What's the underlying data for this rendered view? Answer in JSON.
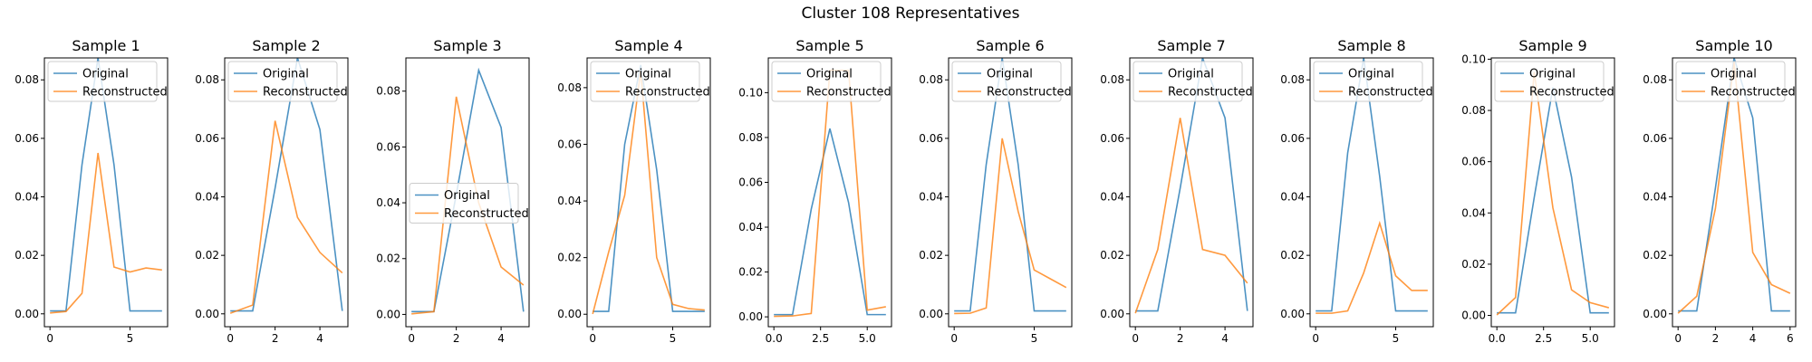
{
  "figure": {
    "suptitle": "Cluster 108 Representatives"
  },
  "colors": {
    "original": "#1f77b4",
    "reconstructed": "#ff7f0e",
    "axes": "#000000",
    "legend_border": "#cccccc"
  },
  "chart_data": [
    {
      "type": "line",
      "title": "Sample 1",
      "xlim": [
        -0.35,
        7.35
      ],
      "ylim": [
        -0.0044,
        0.0875
      ],
      "xticks": [
        0,
        5
      ],
      "yticks": [
        0.0,
        0.02,
        0.04,
        0.06,
        0.08
      ],
      "yticklabels": [
        "0.00",
        "0.02",
        "0.04",
        "0.06",
        "0.08"
      ],
      "legend": {
        "loc": "upper-left"
      },
      "series": [
        {
          "name": "Original",
          "x": [
            0,
            1,
            2,
            3,
            4,
            5,
            6,
            7
          ],
          "values": [
            0.001,
            0.001,
            0.051,
            0.0875,
            0.051,
            0.001,
            0.001,
            0.001
          ]
        },
        {
          "name": "Reconstructed",
          "x": [
            0,
            1,
            2,
            3,
            4,
            5,
            6,
            7
          ],
          "values": [
            0.0003,
            0.0008,
            0.007,
            0.055,
            0.016,
            0.0143,
            0.0157,
            0.015
          ]
        }
      ]
    },
    {
      "type": "line",
      "title": "Sample 2",
      "xlim": [
        -0.25,
        5.25
      ],
      "ylim": [
        -0.0044,
        0.0875
      ],
      "xticks": [
        0,
        2,
        4
      ],
      "yticks": [
        0.0,
        0.02,
        0.04,
        0.06,
        0.08
      ],
      "yticklabels": [
        "0.00",
        "0.02",
        "0.04",
        "0.06",
        "0.08"
      ],
      "legend": {
        "loc": "upper-left"
      },
      "series": [
        {
          "name": "Original",
          "x": [
            0,
            1,
            2,
            3,
            4,
            5
          ],
          "values": [
            0.001,
            0.001,
            0.043,
            0.0875,
            0.063,
            0.001
          ]
        },
        {
          "name": "Reconstructed",
          "x": [
            0,
            1,
            2,
            3,
            4,
            5
          ],
          "values": [
            0.0002,
            0.003,
            0.066,
            0.033,
            0.021,
            0.014
          ]
        }
      ]
    },
    {
      "type": "line",
      "title": "Sample 3",
      "xlim": [
        -0.25,
        5.25
      ],
      "ylim": [
        -0.0044,
        0.0919
      ],
      "xticks": [
        0,
        2,
        4
      ],
      "yticks": [
        0.0,
        0.02,
        0.04,
        0.06,
        0.08
      ],
      "yticklabels": [
        "0.00",
        "0.02",
        "0.04",
        "0.06",
        "0.08"
      ],
      "legend": {
        "loc": "center-left"
      },
      "series": [
        {
          "name": "Original",
          "x": [
            0,
            1,
            2,
            3,
            4,
            5
          ],
          "values": [
            0.001,
            0.001,
            0.043,
            0.0875,
            0.067,
            0.001
          ]
        },
        {
          "name": "Reconstructed",
          "x": [
            0,
            1,
            2,
            3,
            4,
            5
          ],
          "values": [
            0.0002,
            0.001,
            0.078,
            0.04,
            0.017,
            0.0105
          ]
        }
      ]
    },
    {
      "type": "line",
      "title": "Sample 4",
      "xlim": [
        -0.35,
        7.35
      ],
      "ylim": [
        -0.0044,
        0.0905
      ],
      "xticks": [
        0,
        5
      ],
      "yticks": [
        0.0,
        0.02,
        0.04,
        0.06,
        0.08
      ],
      "yticklabels": [
        "0.00",
        "0.02",
        "0.04",
        "0.06",
        "0.08"
      ],
      "legend": {
        "loc": "upper-left"
      },
      "series": [
        {
          "name": "Original",
          "x": [
            0,
            1,
            2,
            3,
            4,
            5,
            6,
            7
          ],
          "values": [
            0.001,
            0.001,
            0.06,
            0.088,
            0.051,
            0.001,
            0.001,
            0.001
          ]
        },
        {
          "name": "Reconstructed",
          "x": [
            0,
            1,
            2,
            3,
            4,
            5,
            6,
            7
          ],
          "values": [
            0.0001,
            0.022,
            0.042,
            0.086,
            0.02,
            0.0035,
            0.002,
            0.0015
          ]
        }
      ]
    },
    {
      "type": "line",
      "title": "Sample 5",
      "xlim": [
        -0.3,
        6.3
      ],
      "ylim": [
        -0.0044,
        0.1155
      ],
      "xticks": [
        0,
        2.5,
        5
      ],
      "xticklabels": [
        "0.0",
        "2.5",
        "5.0"
      ],
      "yticks": [
        0.0,
        0.02,
        0.04,
        0.06,
        0.08,
        0.1
      ],
      "yticklabels": [
        "0.00",
        "0.02",
        "0.04",
        "0.06",
        "0.08",
        "0.10"
      ],
      "legend": {
        "loc": "upper-left"
      },
      "series": [
        {
          "name": "Original",
          "x": [
            0,
            1,
            2,
            3,
            4,
            5,
            6
          ],
          "values": [
            0.001,
            0.001,
            0.048,
            0.084,
            0.051,
            0.001,
            0.001
          ]
        },
        {
          "name": "Reconstructed",
          "x": [
            0,
            1,
            2,
            3,
            4,
            5,
            6
          ],
          "values": [
            0.0002,
            0.0004,
            0.0015,
            0.11,
            0.11,
            0.003,
            0.0045
          ]
        }
      ]
    },
    {
      "type": "line",
      "title": "Sample 6",
      "xlim": [
        -0.35,
        7.35
      ],
      "ylim": [
        -0.0044,
        0.0875
      ],
      "xticks": [
        0,
        5
      ],
      "yticks": [
        0.0,
        0.02,
        0.04,
        0.06,
        0.08
      ],
      "yticklabels": [
        "0.00",
        "0.02",
        "0.04",
        "0.06",
        "0.08"
      ],
      "legend": {
        "loc": "upper-left"
      },
      "series": [
        {
          "name": "Original",
          "x": [
            0,
            1,
            2,
            3,
            4,
            5,
            6,
            7
          ],
          "values": [
            0.001,
            0.001,
            0.051,
            0.0875,
            0.051,
            0.001,
            0.001,
            0.001
          ]
        },
        {
          "name": "Reconstructed",
          "x": [
            0,
            1,
            2,
            3,
            4,
            5,
            6,
            7
          ],
          "values": [
            0.0001,
            0.0002,
            0.002,
            0.06,
            0.035,
            0.015,
            0.012,
            0.009
          ]
        }
      ]
    },
    {
      "type": "line",
      "title": "Sample 7",
      "xlim": [
        -0.25,
        5.25
      ],
      "ylim": [
        -0.0044,
        0.0875
      ],
      "xticks": [
        0,
        2,
        4
      ],
      "yticks": [
        0.0,
        0.02,
        0.04,
        0.06,
        0.08
      ],
      "yticklabels": [
        "0.00",
        "0.02",
        "0.04",
        "0.06",
        "0.08"
      ],
      "legend": {
        "loc": "upper-left"
      },
      "series": [
        {
          "name": "Original",
          "x": [
            0,
            1,
            2,
            3,
            4,
            5
          ],
          "values": [
            0.001,
            0.001,
            0.043,
            0.0875,
            0.067,
            0.001
          ]
        },
        {
          "name": "Reconstructed",
          "x": [
            0,
            1,
            2,
            3,
            4,
            5
          ],
          "values": [
            0.0002,
            0.022,
            0.067,
            0.022,
            0.02,
            0.0105
          ]
        }
      ]
    },
    {
      "type": "line",
      "title": "Sample 8",
      "xlim": [
        -0.35,
        7.35
      ],
      "ylim": [
        -0.0044,
        0.0875
      ],
      "xticks": [
        0,
        5
      ],
      "yticks": [
        0.0,
        0.02,
        0.04,
        0.06,
        0.08
      ],
      "yticklabels": [
        "0.00",
        "0.02",
        "0.04",
        "0.06",
        "0.08"
      ],
      "legend": {
        "loc": "upper-left"
      },
      "series": [
        {
          "name": "Original",
          "x": [
            0,
            1,
            2,
            3,
            4,
            5,
            6,
            7
          ],
          "values": [
            0.001,
            0.001,
            0.055,
            0.0875,
            0.047,
            0.001,
            0.001,
            0.001
          ]
        },
        {
          "name": "Reconstructed",
          "x": [
            0,
            1,
            2,
            3,
            4,
            5,
            6,
            7
          ],
          "values": [
            0.0002,
            0.0002,
            0.001,
            0.014,
            0.031,
            0.013,
            0.008,
            0.008
          ]
        }
      ]
    },
    {
      "type": "line",
      "title": "Sample 9",
      "xlim": [
        -0.3,
        6.3
      ],
      "ylim": [
        -0.0044,
        0.1005
      ],
      "xticks": [
        0,
        2.5,
        5
      ],
      "xticklabels": [
        "0.0",
        "2.5",
        "5.0"
      ],
      "yticks": [
        0.0,
        0.02,
        0.04,
        0.06,
        0.08,
        0.1
      ],
      "yticklabels": [
        "0.00",
        "0.02",
        "0.04",
        "0.06",
        "0.08",
        "0.10"
      ],
      "legend": {
        "loc": "upper-left"
      },
      "series": [
        {
          "name": "Original",
          "x": [
            0,
            1,
            2,
            3,
            4,
            5,
            6
          ],
          "values": [
            0.001,
            0.001,
            0.046,
            0.089,
            0.054,
            0.001,
            0.001
          ]
        },
        {
          "name": "Reconstructed",
          "x": [
            0,
            1,
            2,
            3,
            4,
            5,
            6
          ],
          "values": [
            0.0002,
            0.007,
            0.095,
            0.042,
            0.01,
            0.005,
            0.003
          ]
        }
      ]
    },
    {
      "type": "line",
      "title": "Sample 10",
      "xlim": [
        -0.3,
        6.3
      ],
      "ylim": [
        -0.0044,
        0.0875
      ],
      "xticks": [
        0,
        2,
        4,
        6
      ],
      "yticks": [
        0.0,
        0.02,
        0.04,
        0.06,
        0.08
      ],
      "yticklabels": [
        "0.00",
        "0.02",
        "0.04",
        "0.06",
        "0.08"
      ],
      "legend": {
        "loc": "upper-left"
      },
      "series": [
        {
          "name": "Original",
          "x": [
            0,
            1,
            2,
            3,
            4,
            5,
            6
          ],
          "values": [
            0.001,
            0.001,
            0.043,
            0.0875,
            0.067,
            0.001,
            0.001
          ]
        },
        {
          "name": "Reconstructed",
          "x": [
            0,
            1,
            2,
            3,
            4,
            5,
            6
          ],
          "values": [
            0.0002,
            0.006,
            0.036,
            0.086,
            0.021,
            0.01,
            0.007
          ]
        }
      ]
    }
  ]
}
